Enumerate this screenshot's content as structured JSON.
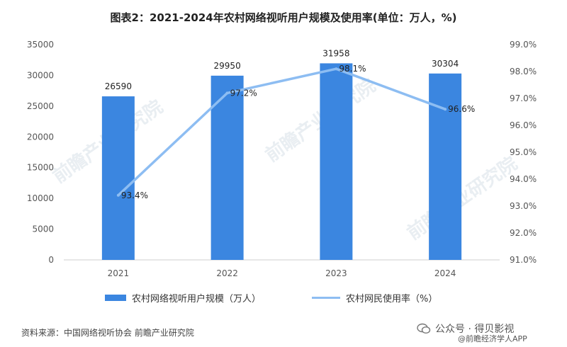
{
  "title": "图表2：2021-2024年农村网络视听用户规模及使用率(单位：万人，%)",
  "chart_data": {
    "type": "bar",
    "categories": [
      "2021",
      "2022",
      "2023",
      "2024"
    ],
    "series": [
      {
        "name": "农村网络视听用户规模（万人）",
        "type": "bar",
        "axis": "left",
        "values": [
          26590,
          29950,
          31958,
          30304
        ],
        "labels": [
          "26590",
          "29950",
          "31958",
          "30304"
        ],
        "color": "#3b86e0"
      },
      {
        "name": "农村网民使用率（%）",
        "type": "line",
        "axis": "right",
        "values": [
          93.4,
          97.2,
          98.1,
          96.6
        ],
        "labels": [
          "93.4%",
          "97.2%",
          "98.1%",
          "96.6%"
        ],
        "color": "#8dbdf2"
      }
    ],
    "y_left": {
      "min": 0,
      "max": 35000,
      "ticks": [
        "0",
        "5000",
        "10000",
        "15000",
        "20000",
        "25000",
        "30000",
        "35000"
      ]
    },
    "y_right": {
      "min": 91.0,
      "max": 99.0,
      "ticks": [
        "91.0%",
        "92.0%",
        "93.0%",
        "94.0%",
        "95.0%",
        "96.0%",
        "97.0%",
        "98.0%",
        "99.0%"
      ]
    },
    "grid": false,
    "legend": "bottom"
  },
  "footer": {
    "source": "资料来源：中国网络视听协会 前瞻产业研究院",
    "watermark": "公众号 · 得贝影视",
    "app": "@前瞻经济学人APP"
  },
  "background_watermark": "前瞻产业研究院"
}
